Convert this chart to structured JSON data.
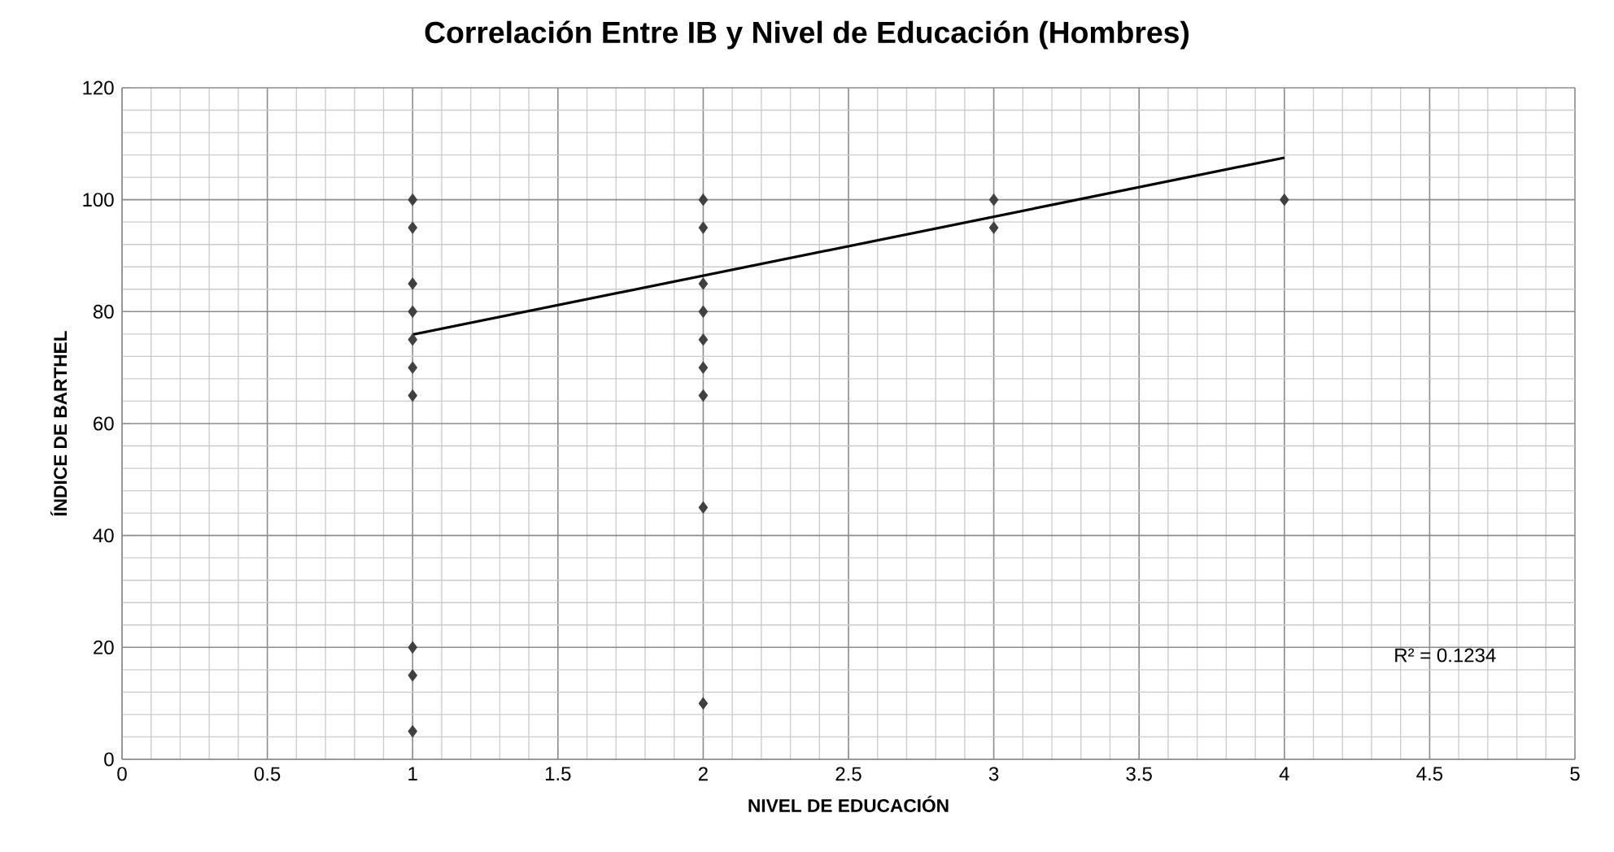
{
  "chart_data": {
    "type": "scatter",
    "title": "Correlación Entre IB y Nivel de Educación (Hombres)",
    "xlabel": "NIVEL DE EDUCACIÓN",
    "ylabel": "ÍNDICE DE BARTHEL",
    "xlim": [
      0,
      5
    ],
    "xticks": [
      0,
      0.5,
      1,
      1.5,
      2,
      2.5,
      3,
      3.5,
      4,
      4.5,
      5
    ],
    "ylim": [
      0,
      120
    ],
    "yticks": [
      0,
      20,
      40,
      60,
      80,
      100,
      120
    ],
    "grid": true,
    "series": [
      {
        "marker": "diamond",
        "color": "#404040",
        "x": [
          1,
          1,
          1,
          1,
          1,
          1,
          1,
          1,
          1,
          1,
          2,
          2,
          2,
          2,
          2,
          2,
          2,
          2,
          2,
          3,
          3,
          4
        ],
        "values": [
          100,
          95,
          85,
          80,
          75,
          70,
          65,
          20,
          15,
          5,
          100,
          95,
          85,
          80,
          75,
          70,
          65,
          45,
          10,
          100,
          95,
          100
        ]
      },
      {
        "type": "line",
        "marker": "none",
        "color": "#000000",
        "x": [
          1,
          4
        ],
        "values": [
          75.9,
          107.5
        ]
      }
    ],
    "annotations": [
      "R² = 0.1234"
    ]
  }
}
